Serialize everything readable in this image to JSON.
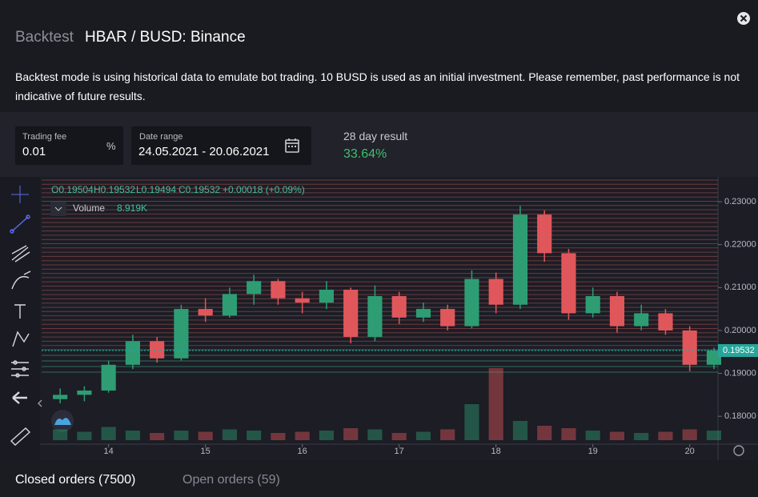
{
  "header": {
    "prefix": "Backtest",
    "title": "HBAR / BUSD: Binance"
  },
  "notice": "Backtest mode is using historical data to emulate bot trading. 10 BUSD is used as an initial investment. Please remember, past performance is not indicative of future results.",
  "fields": {
    "trading_fee": {
      "label": "Trading fee",
      "value": "0.01",
      "unit": "%"
    },
    "date_range": {
      "label": "Date range",
      "value": "24.05.2021 - 20.06.2021"
    },
    "result": {
      "label": "28 day result",
      "value": "33.64%"
    }
  },
  "chart_data": {
    "type": "candlestick",
    "legend": {
      "open": "O0.19504",
      "high": "H0.19532",
      "low": "L0.19494",
      "close": "C0.19532",
      "change": "+0.00018 (+0.09%)",
      "volume_label": "Volume",
      "volume": "8.919K"
    },
    "x": [
      13.5,
      13.75,
      14,
      14.25,
      14.5,
      14.75,
      15,
      15.25,
      15.5,
      15.75,
      16,
      16.25,
      16.5,
      16.75,
      17,
      17.25,
      17.5,
      17.75,
      18,
      18.25,
      18.5,
      18.75,
      19,
      19.25,
      19.5,
      19.75,
      20,
      20.25
    ],
    "open": [
      0.184,
      0.185,
      0.186,
      0.192,
      0.1975,
      0.1935,
      0.205,
      0.2035,
      0.2085,
      0.2115,
      0.2075,
      0.2065,
      0.2095,
      0.1985,
      0.208,
      0.203,
      0.205,
      0.201,
      0.212,
      0.206,
      0.227,
      0.218,
      0.204,
      0.208,
      0.201,
      0.204,
      0.2,
      0.192
    ],
    "high": [
      0.1865,
      0.187,
      0.193,
      0.199,
      0.1985,
      0.206,
      0.2075,
      0.21,
      0.213,
      0.212,
      0.209,
      0.2115,
      0.21,
      0.2105,
      0.209,
      0.2065,
      0.206,
      0.214,
      0.2135,
      0.229,
      0.228,
      0.219,
      0.21,
      0.209,
      0.206,
      0.205,
      0.201,
      0.196
    ],
    "low": [
      0.183,
      0.1835,
      0.1855,
      0.191,
      0.1925,
      0.193,
      0.202,
      0.203,
      0.206,
      0.206,
      0.204,
      0.205,
      0.197,
      0.1975,
      0.2015,
      0.202,
      0.2,
      0.2005,
      0.204,
      0.205,
      0.216,
      0.2025,
      0.203,
      0.1995,
      0.2,
      0.199,
      0.1905,
      0.191
    ],
    "close": [
      0.185,
      0.186,
      0.192,
      0.1975,
      0.1935,
      0.205,
      0.2035,
      0.2085,
      0.2115,
      0.2075,
      0.2065,
      0.2095,
      0.1985,
      0.208,
      0.203,
      0.205,
      0.201,
      0.212,
      0.206,
      0.227,
      0.218,
      0.204,
      0.208,
      0.201,
      0.204,
      0.2,
      0.192,
      0.1953
    ],
    "volume": [
      9,
      7,
      11,
      8,
      6,
      8,
      7,
      9,
      8,
      6,
      7,
      8,
      10,
      9,
      6,
      7,
      9,
      30,
      60,
      16,
      12,
      10,
      8,
      7,
      6,
      7,
      9,
      8
    ],
    "colors": {
      "up": "#2e9d74",
      "down": "#e0575b"
    },
    "xlim": [
      13.35,
      20.3
    ],
    "xticks": [
      14,
      15,
      16,
      17,
      18,
      19,
      20
    ],
    "ylim": [
      0.1735,
      0.2356
    ],
    "yticks": [
      {
        "value": 0.23,
        "label": "0.23000"
      },
      {
        "value": 0.22,
        "label": "0.22000"
      },
      {
        "value": 0.21,
        "label": "0.21000"
      },
      {
        "value": 0.2,
        "label": "0.20000"
      },
      {
        "value": 0.19,
        "label": "0.19000"
      },
      {
        "value": 0.18,
        "label": "0.18000"
      }
    ],
    "last_price": {
      "value": 0.19532,
      "label": "0.19532"
    }
  },
  "tabs": {
    "closed": "Closed orders (7500)",
    "open": "Open orders (59)"
  }
}
